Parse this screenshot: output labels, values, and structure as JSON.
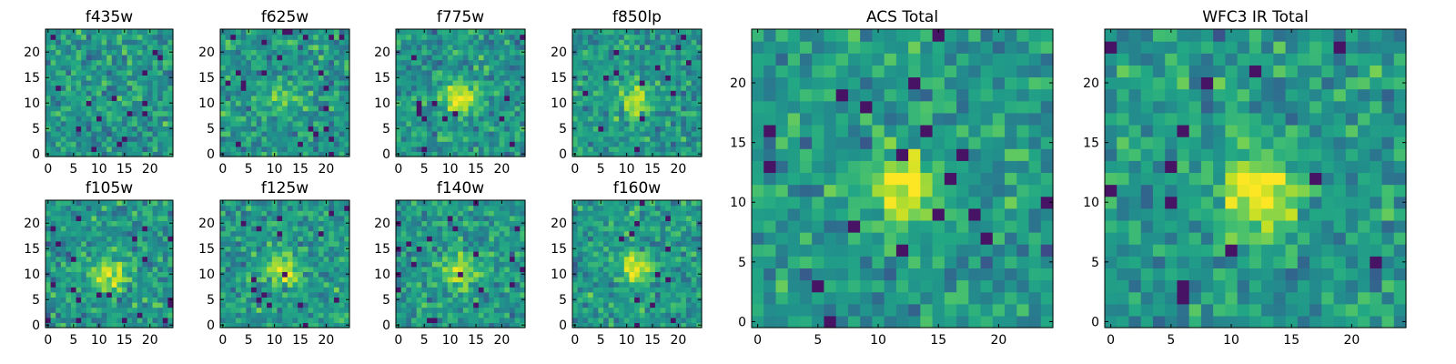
{
  "chart_data": [
    {
      "type": "heatmap",
      "title": "f435w",
      "xlabel": "",
      "ylabel": "",
      "xlim": [
        -0.5,
        24.5
      ],
      "ylim": [
        -0.5,
        24.5
      ],
      "xticks": [
        "0",
        "5",
        "10",
        "15",
        "20"
      ],
      "yticks": [
        "0",
        "5",
        "10",
        "15",
        "20"
      ],
      "grid": false,
      "colormap": "viridis",
      "peak": {
        "x": 12,
        "y": 11,
        "strength": 0.0
      },
      "noise_seed": 11
    },
    {
      "type": "heatmap",
      "title": "f625w",
      "xlabel": "",
      "ylabel": "",
      "xlim": [
        -0.5,
        24.5
      ],
      "ylim": [
        -0.5,
        24.5
      ],
      "xticks": [
        "0",
        "5",
        "10",
        "15",
        "20"
      ],
      "yticks": [
        "0",
        "5",
        "10",
        "15",
        "20"
      ],
      "grid": false,
      "colormap": "viridis",
      "peak": {
        "x": 12,
        "y": 11,
        "strength": 0.45
      },
      "noise_seed": 23
    },
    {
      "type": "heatmap",
      "title": "f775w",
      "xlabel": "",
      "ylabel": "",
      "xlim": [
        -0.5,
        24.5
      ],
      "ylim": [
        -0.5,
        24.5
      ],
      "xticks": [
        "0",
        "5",
        "10",
        "15",
        "20"
      ],
      "yticks": [
        "0",
        "5",
        "10",
        "15",
        "20"
      ],
      "grid": false,
      "colormap": "viridis",
      "peak": {
        "x": 12,
        "y": 11,
        "strength": 0.8
      },
      "noise_seed": 37
    },
    {
      "type": "heatmap",
      "title": "f850lp",
      "xlabel": "",
      "ylabel": "",
      "xlim": [
        -0.5,
        24.5
      ],
      "ylim": [
        -0.5,
        24.5
      ],
      "xticks": [
        "0",
        "5",
        "10",
        "15",
        "20"
      ],
      "yticks": [
        "0",
        "5",
        "10",
        "15",
        "20"
      ],
      "grid": false,
      "colormap": "viridis",
      "peak": {
        "x": 12,
        "y": 11,
        "strength": 0.7
      },
      "noise_seed": 41
    },
    {
      "type": "heatmap",
      "title": "f105w",
      "xlabel": "",
      "ylabel": "",
      "xlim": [
        -0.5,
        24.5
      ],
      "ylim": [
        -0.5,
        24.5
      ],
      "xticks": [
        "0",
        "5",
        "10",
        "15",
        "20"
      ],
      "yticks": [
        "0",
        "5",
        "10",
        "15",
        "20"
      ],
      "grid": false,
      "colormap": "viridis",
      "peak": {
        "x": 12,
        "y": 10,
        "strength": 0.75
      },
      "noise_seed": 53
    },
    {
      "type": "heatmap",
      "title": "f125w",
      "xlabel": "",
      "ylabel": "",
      "xlim": [
        -0.5,
        24.5
      ],
      "ylim": [
        -0.5,
        24.5
      ],
      "xticks": [
        "0",
        "5",
        "10",
        "15",
        "20"
      ],
      "yticks": [
        "0",
        "5",
        "10",
        "15",
        "20"
      ],
      "grid": false,
      "colormap": "viridis",
      "peak": {
        "x": 12,
        "y": 11,
        "strength": 0.75
      },
      "noise_seed": 67
    },
    {
      "type": "heatmap",
      "title": "f140w",
      "xlabel": "",
      "ylabel": "",
      "xlim": [
        -0.5,
        24.5
      ],
      "ylim": [
        -0.5,
        24.5
      ],
      "xticks": [
        "0",
        "5",
        "10",
        "15",
        "20"
      ],
      "yticks": [
        "0",
        "5",
        "10",
        "15",
        "20"
      ],
      "grid": false,
      "colormap": "viridis",
      "peak": {
        "x": 12,
        "y": 11,
        "strength": 0.75
      },
      "noise_seed": 79
    },
    {
      "type": "heatmap",
      "title": "f160w",
      "xlabel": "",
      "ylabel": "",
      "xlim": [
        -0.5,
        24.5
      ],
      "ylim": [
        -0.5,
        24.5
      ],
      "xticks": [
        "0",
        "5",
        "10",
        "15",
        "20"
      ],
      "yticks": [
        "0",
        "5",
        "10",
        "15",
        "20"
      ],
      "grid": false,
      "colormap": "viridis",
      "peak": {
        "x": 12,
        "y": 11,
        "strength": 0.75
      },
      "noise_seed": 83
    },
    {
      "type": "heatmap",
      "title": "ACS Total",
      "xlabel": "",
      "ylabel": "",
      "xlim": [
        -0.5,
        24.5
      ],
      "ylim": [
        -0.5,
        24.5
      ],
      "xticks": [
        "0",
        "5",
        "10",
        "15",
        "20"
      ],
      "yticks": [
        "0",
        "5",
        "10",
        "15",
        "20"
      ],
      "grid": false,
      "colormap": "viridis",
      "peak": {
        "x": 12,
        "y": 11,
        "strength": 0.9
      },
      "noise_seed": 97
    },
    {
      "type": "heatmap",
      "title": "WFC3 IR Total",
      "xlabel": "",
      "ylabel": "",
      "xlim": [
        -0.5,
        24.5
      ],
      "ylim": [
        -0.5,
        24.5
      ],
      "xticks": [
        "0",
        "5",
        "10",
        "15",
        "20"
      ],
      "yticks": [
        "0",
        "5",
        "10",
        "15",
        "20"
      ],
      "grid": false,
      "colormap": "viridis",
      "peak": {
        "x": 12,
        "y": 11,
        "strength": 0.9
      },
      "noise_seed": 101
    }
  ]
}
